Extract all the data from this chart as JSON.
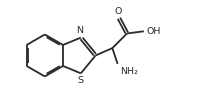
{
  "bg_color": "#ffffff",
  "line_color": "#2a2a2a",
  "line_width": 1.3,
  "text_color": "#2a2a2a",
  "figsize": [
    2.1,
    1.08
  ],
  "dpi": 100,
  "atoms": {
    "N_label": "N",
    "S_label": "S",
    "O_label": "O",
    "OH_label": "OH",
    "NH2_label": "NH₂"
  },
  "font_size": 6.8
}
